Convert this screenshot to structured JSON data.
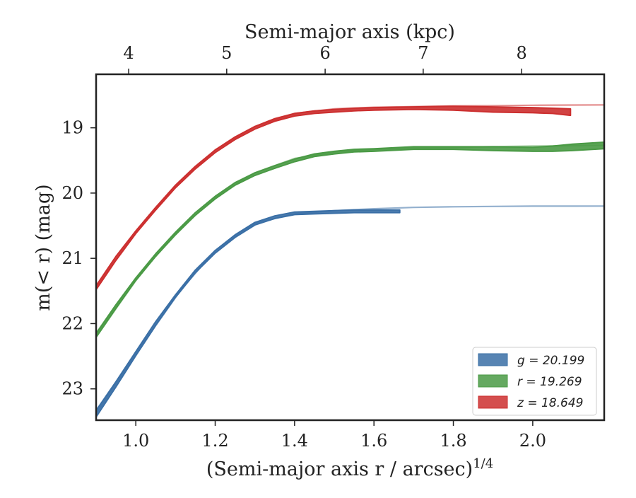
{
  "chart_data": {
    "type": "line",
    "xlabel": "(Semi-major axis r / arcsec)",
    "xlabel_sup": "1/4",
    "ylabel": "m(< r) (mag)",
    "top_xlabel": "Semi-major axis (kpc)",
    "xlim": [
      0.9,
      2.18
    ],
    "ylim": [
      23.48,
      18.18
    ],
    "y_inverted": true,
    "x_ticks": [
      1.0,
      1.2,
      1.4,
      1.6,
      1.8,
      2.0
    ],
    "x_tick_labels": [
      "1.0",
      "1.2",
      "1.4",
      "1.6",
      "1.8",
      "2.0"
    ],
    "y_ticks": [
      19,
      20,
      21,
      22,
      23
    ],
    "y_tick_labels": [
      "19",
      "20",
      "21",
      "22",
      "23"
    ],
    "top_ticks_x": [
      0.982,
      1.229,
      1.477,
      1.724,
      1.972
    ],
    "top_tick_labels": [
      "4",
      "5",
      "6",
      "7",
      "8"
    ],
    "grid": false,
    "legend_position": "bottom-right",
    "series": [
      {
        "name": "g = 20.199",
        "band": "g",
        "total": "20.199",
        "color": "#3a6fa6",
        "x": [
          0.9,
          0.95,
          1.0,
          1.05,
          1.1,
          1.15,
          1.2,
          1.25,
          1.3,
          1.35,
          1.4,
          1.45,
          1.5,
          1.55,
          1.6,
          1.665
        ],
        "y": [
          23.38,
          22.93,
          22.46,
          22.0,
          21.58,
          21.2,
          20.9,
          20.66,
          20.47,
          20.37,
          20.31,
          20.3,
          20.29,
          20.28,
          20.28,
          20.28
        ],
        "y_err": [
          0.05,
          0.04,
          0.03,
          0.03,
          0.02,
          0.02,
          0.02,
          0.02,
          0.02,
          0.02,
          0.02,
          0.02,
          0.02,
          0.02,
          0.02,
          0.02
        ],
        "model_x": [
          0.9,
          1.0,
          1.1,
          1.2,
          1.3,
          1.4,
          1.5,
          1.6,
          1.7,
          1.8,
          1.9,
          2.0,
          2.1,
          2.18
        ],
        "model_y": [
          23.38,
          22.46,
          21.58,
          20.88,
          20.46,
          20.32,
          20.27,
          20.24,
          20.22,
          20.21,
          20.205,
          20.2,
          20.2,
          20.199
        ]
      },
      {
        "name": "r = 19.269",
        "band": "r",
        "total": "19.269",
        "color": "#4a9a45",
        "x": [
          0.9,
          0.95,
          1.0,
          1.05,
          1.1,
          1.15,
          1.2,
          1.25,
          1.3,
          1.35,
          1.4,
          1.45,
          1.5,
          1.55,
          1.6,
          1.7,
          1.8,
          1.9,
          2.0,
          2.05,
          2.1,
          2.18
        ],
        "y": [
          22.18,
          21.74,
          21.32,
          20.95,
          20.62,
          20.32,
          20.07,
          19.86,
          19.71,
          19.6,
          19.5,
          19.42,
          19.38,
          19.35,
          19.34,
          19.31,
          19.31,
          19.32,
          19.33,
          19.32,
          19.3,
          19.27
        ],
        "y_err": [
          0.03,
          0.03,
          0.02,
          0.02,
          0.02,
          0.02,
          0.02,
          0.02,
          0.02,
          0.02,
          0.02,
          0.02,
          0.02,
          0.02,
          0.02,
          0.02,
          0.02,
          0.03,
          0.03,
          0.04,
          0.05,
          0.05
        ],
        "model_x": [
          0.9,
          1.0,
          1.1,
          1.2,
          1.3,
          1.4,
          1.5,
          1.6,
          1.7,
          1.8,
          1.9,
          2.0,
          2.1,
          2.18
        ],
        "model_y": [
          22.18,
          21.32,
          20.62,
          20.06,
          19.69,
          19.47,
          19.37,
          19.33,
          19.31,
          19.3,
          19.29,
          19.28,
          19.275,
          19.269
        ]
      },
      {
        "name": "z = 18.649",
        "band": "z",
        "total": "18.649",
        "color": "#cc2f2f",
        "x": [
          0.9,
          0.95,
          1.0,
          1.05,
          1.1,
          1.15,
          1.2,
          1.25,
          1.3,
          1.35,
          1.4,
          1.45,
          1.5,
          1.55,
          1.6,
          1.7,
          1.8,
          1.9,
          2.0,
          2.05,
          2.095
        ],
        "y": [
          21.45,
          21.0,
          20.6,
          20.24,
          19.9,
          19.61,
          19.36,
          19.16,
          19.0,
          18.88,
          18.8,
          18.76,
          18.74,
          18.72,
          18.71,
          18.7,
          18.7,
          18.72,
          18.73,
          18.74,
          18.76
        ],
        "y_err": [
          0.03,
          0.03,
          0.02,
          0.02,
          0.02,
          0.02,
          0.02,
          0.02,
          0.02,
          0.02,
          0.02,
          0.02,
          0.02,
          0.02,
          0.02,
          0.02,
          0.03,
          0.04,
          0.04,
          0.04,
          0.05
        ],
        "model_x": [
          0.9,
          1.0,
          1.1,
          1.2,
          1.3,
          1.4,
          1.5,
          1.6,
          1.7,
          1.8,
          1.9,
          2.0,
          2.1,
          2.18
        ],
        "model_y": [
          21.45,
          20.6,
          19.9,
          19.34,
          18.98,
          18.78,
          18.71,
          18.685,
          18.675,
          18.665,
          18.66,
          18.655,
          18.652,
          18.649
        ]
      }
    ]
  }
}
